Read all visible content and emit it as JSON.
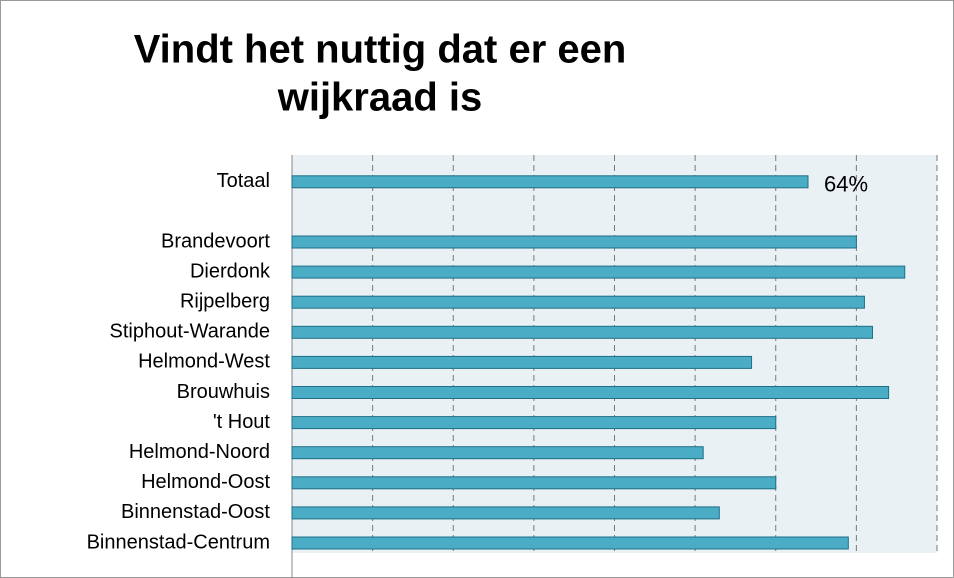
{
  "chart_data": {
    "type": "bar",
    "orientation": "horizontal",
    "title": [
      "Vindt het nuttig dat er een",
      "wijkraad is"
    ],
    "categories": [
      "Totaal",
      null,
      "Brandevoort",
      "Dierdonk",
      "Rijpelberg",
      "Stiphout-Warande",
      "Helmond-West",
      "Brouwhuis",
      "'t Hout",
      "Helmond-Noord",
      "Helmond-Oost",
      "Binnenstad-Oost",
      "Binnenstad-Centrum"
    ],
    "values": [
      64,
      null,
      70,
      76,
      71,
      72,
      57,
      74,
      60,
      51,
      60,
      53,
      69
    ],
    "value_labels": [
      "64%",
      null,
      null,
      null,
      null,
      null,
      null,
      null,
      null,
      null,
      null,
      null,
      null
    ],
    "color": "#4bacc6",
    "xlim": [
      0,
      80
    ],
    "xticks": [
      0,
      10,
      20,
      30,
      40,
      50,
      60,
      70,
      80
    ],
    "grid": true
  }
}
